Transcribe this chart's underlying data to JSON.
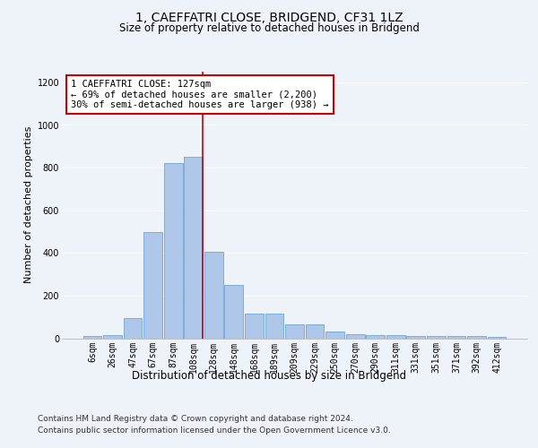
{
  "title1": "1, CAEFFATRI CLOSE, BRIDGEND, CF31 1LZ",
  "title2": "Size of property relative to detached houses in Bridgend",
  "xlabel": "Distribution of detached houses by size in Bridgend",
  "ylabel": "Number of detached properties",
  "footer1": "Contains HM Land Registry data © Crown copyright and database right 2024.",
  "footer2": "Contains public sector information licensed under the Open Government Licence v3.0.",
  "bin_labels": [
    "6sqm",
    "26sqm",
    "47sqm",
    "67sqm",
    "87sqm",
    "108sqm",
    "128sqm",
    "148sqm",
    "168sqm",
    "189sqm",
    "209sqm",
    "229sqm",
    "250sqm",
    "270sqm",
    "290sqm",
    "311sqm",
    "331sqm",
    "351sqm",
    "371sqm",
    "392sqm",
    "412sqm"
  ],
  "bar_values": [
    10,
    15,
    95,
    500,
    820,
    850,
    405,
    250,
    115,
    115,
    65,
    65,
    30,
    20,
    15,
    15,
    10,
    10,
    10,
    10,
    5
  ],
  "bar_color": "#aec6e8",
  "bar_edge_color": "#5b9bd5",
  "annotation_text": "1 CAEFFATRI CLOSE: 127sqm\n← 69% of detached houses are smaller (2,200)\n30% of semi-detached houses are larger (938) →",
  "annotation_box_color": "#ffffff",
  "annotation_box_edge": "#cc0000",
  "vline_color": "#cc0000",
  "ylim": [
    0,
    1250
  ],
  "yticks": [
    0,
    200,
    400,
    600,
    800,
    1000,
    1200
  ],
  "background_color": "#eef2f9",
  "plot_background": "#eef2f9",
  "grid_color": "#ffffff",
  "title1_fontsize": 10,
  "title2_fontsize": 8.5,
  "xlabel_fontsize": 8.5,
  "ylabel_fontsize": 8,
  "tick_fontsize": 7,
  "annot_fontsize": 7.5,
  "footer_fontsize": 6.5
}
